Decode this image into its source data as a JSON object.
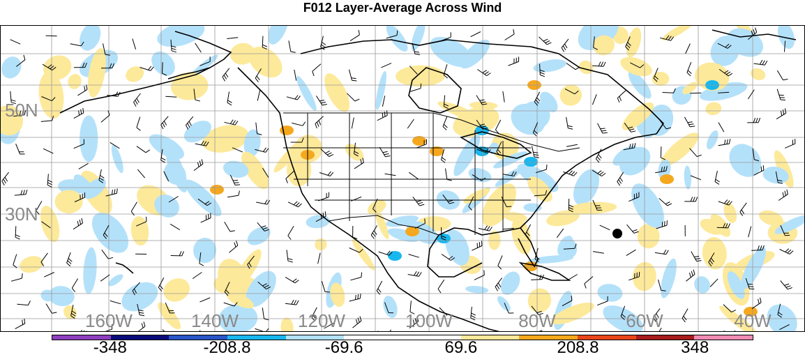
{
  "title": "F012 Layer-Average Across Wind",
  "lat_labels": [
    {
      "text": "50N",
      "lat": 50
    },
    {
      "text": "30N",
      "lat": 30
    }
  ],
  "lon_labels": [
    {
      "text": "160W",
      "lon": -160
    },
    {
      "text": "140W",
      "lon": -140
    },
    {
      "text": "120W",
      "lon": -120
    },
    {
      "text": "100W",
      "lon": -100
    },
    {
      "text": "80W",
      "lon": -80
    },
    {
      "text": "60W",
      "lon": -60
    },
    {
      "text": "40W",
      "lon": -40
    }
  ],
  "colorbar": {
    "colors": [
      "#8e3fbf",
      "#0a0a7a",
      "#2a55c8",
      "#19b7ef",
      "#b4e1fa",
      "#ffffff",
      "#ffffff",
      "#fde99a",
      "#f5a81e",
      "#e8461a",
      "#a81c1c",
      "#f08cb4"
    ],
    "labels": [
      {
        "text": "-348",
        "index": 1
      },
      {
        "text": "-208.8",
        "index": 3
      },
      {
        "text": "-69.6",
        "index": 5
      },
      {
        "text": "69.6",
        "index": 7
      },
      {
        "text": "208.8",
        "index": 9
      },
      {
        "text": "348",
        "index": 11
      }
    ]
  },
  "colors": {
    "neg_light": "#b4e1fa",
    "neg_mid": "#19b7ef",
    "pos_light": "#fde99a",
    "pos_mid": "#f5a81e",
    "grid": "#999999"
  }
}
